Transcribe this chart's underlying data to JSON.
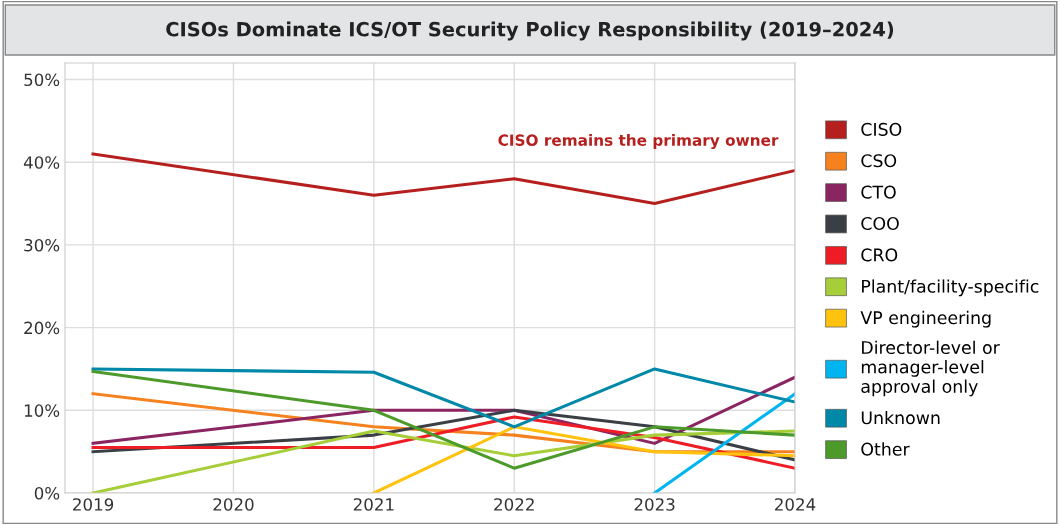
{
  "chart_data": {
    "type": "line",
    "title": "CISOs Dominate ICS/OT Security Policy Responsibility (2019–2024)",
    "x": [
      2019,
      2021,
      2022,
      2023,
      2024
    ],
    "series": [
      {
        "name": "CISO",
        "color": "#b5201e",
        "values": [
          41,
          36,
          38,
          35,
          39
        ]
      },
      {
        "name": "CSO",
        "color": "#f5821f",
        "values": [
          12,
          8,
          7,
          5,
          5
        ]
      },
      {
        "name": "CTO",
        "color": "#8b2561",
        "values": [
          6,
          10,
          10,
          6,
          14
        ]
      },
      {
        "name": "COO",
        "color": "#3a3f45",
        "values": [
          5,
          7,
          10,
          8,
          4
        ]
      },
      {
        "name": "CRO",
        "color": "#ee1c25",
        "values": [
          5.5,
          5.5,
          9.2,
          6.7,
          3
        ]
      },
      {
        "name": "Plant/facility-specific",
        "color": "#a6ce39",
        "values": [
          0,
          7.5,
          4.5,
          7,
          7.5
        ]
      },
      {
        "name": "VP engineering",
        "color": "#ffc20e",
        "values": [
          null,
          0,
          8,
          5,
          4.5
        ]
      },
      {
        "name": "Director-level or\nmanager-level\napproval only",
        "color": "#00b5ef",
        "values": [
          null,
          null,
          null,
          0,
          12
        ]
      },
      {
        "name": "Unknown",
        "color": "#0088a8",
        "values": [
          15,
          14.6,
          8,
          15,
          11
        ]
      },
      {
        "name": "Other",
        "color": "#4c9a2a",
        "values": [
          14.7,
          10,
          3,
          8,
          7
        ]
      }
    ],
    "annotations": [
      "CISO remains the primary owner"
    ],
    "xlim": [
      2018.8,
      2024
    ],
    "ylim": [
      0,
      52
    ],
    "xticks": [
      2019,
      2020,
      2021,
      2022,
      2023,
      2024
    ],
    "yticks": [
      {
        "value": 0,
        "label": "0%"
      },
      {
        "value": 10,
        "label": "10%"
      },
      {
        "value": 20,
        "label": "20%"
      },
      {
        "value": 30,
        "label": "30%"
      },
      {
        "value": 40,
        "label": "40%"
      },
      {
        "value": 50,
        "label": "50%"
      }
    ],
    "grid": true,
    "legend": "right",
    "marker": "none",
    "line_style": "solid"
  }
}
